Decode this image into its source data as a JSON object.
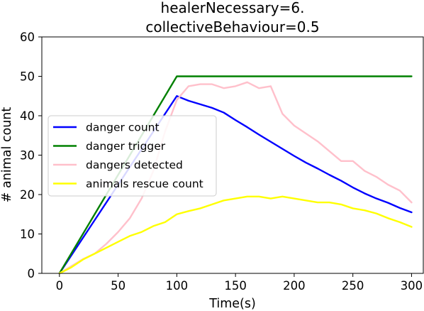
{
  "chart_data": {
    "type": "line",
    "title_lines": [
      "healerNecessary=6.",
      "collectiveBehaviour=0.5"
    ],
    "xlabel": "Time(s)",
    "ylabel": "# animal count",
    "xlim": [
      -15,
      310
    ],
    "ylim": [
      0,
      60
    ],
    "xticks": [
      0,
      50,
      100,
      150,
      200,
      250,
      300
    ],
    "yticks": [
      0,
      10,
      20,
      30,
      40,
      50,
      60
    ],
    "legend_location": "center-left",
    "grid": false,
    "series": [
      {
        "name": "danger count",
        "color": "#0000ff",
        "x": [
          0,
          100,
          110,
          120,
          130,
          140,
          150,
          160,
          170,
          180,
          190,
          200,
          210,
          220,
          230,
          240,
          250,
          260,
          270,
          280,
          290,
          300
        ],
        "y": [
          0,
          45,
          43.8,
          42.9,
          42,
          40.8,
          38.9,
          37.1,
          35.2,
          33.4,
          31.6,
          29.8,
          28.1,
          26.6,
          25,
          23.5,
          21.8,
          20.3,
          19,
          17.9,
          16.6,
          15.5
        ]
      },
      {
        "name": "danger trigger",
        "color": "#008000",
        "x": [
          0,
          100,
          300
        ],
        "y": [
          0,
          50,
          50
        ]
      },
      {
        "name": "dangers detected",
        "color": "#ffc0cb",
        "x": [
          0,
          10,
          20,
          30,
          40,
          50,
          60,
          70,
          80,
          90,
          100,
          110,
          120,
          130,
          140,
          150,
          160,
          170,
          180,
          190,
          200,
          210,
          220,
          230,
          240,
          250,
          260,
          270,
          280,
          290,
          300
        ],
        "y": [
          0,
          1.8,
          3.6,
          5,
          7.5,
          10.5,
          14,
          19,
          26,
          36,
          44,
          47.5,
          48,
          48,
          47,
          47.5,
          48.5,
          47,
          47.5,
          40.5,
          37.5,
          35.5,
          33.5,
          31,
          28.5,
          28.5,
          26,
          24.5,
          22.5,
          21,
          18
        ]
      },
      {
        "name": "animals rescue count",
        "color": "#ffff00",
        "x": [
          0,
          10,
          20,
          30,
          40,
          50,
          60,
          70,
          80,
          90,
          100,
          110,
          120,
          130,
          140,
          150,
          160,
          170,
          180,
          190,
          200,
          210,
          220,
          230,
          240,
          250,
          260,
          270,
          280,
          290,
          300
        ],
        "y": [
          0,
          1.5,
          3.5,
          5,
          6.5,
          8,
          9.5,
          10.5,
          12,
          13,
          15,
          15.8,
          16.5,
          17.5,
          18.5,
          19,
          19.5,
          19.5,
          19,
          19.5,
          19,
          18.5,
          18,
          18,
          17.5,
          16.5,
          16,
          15.2,
          14,
          13,
          11.8
        ]
      }
    ]
  }
}
